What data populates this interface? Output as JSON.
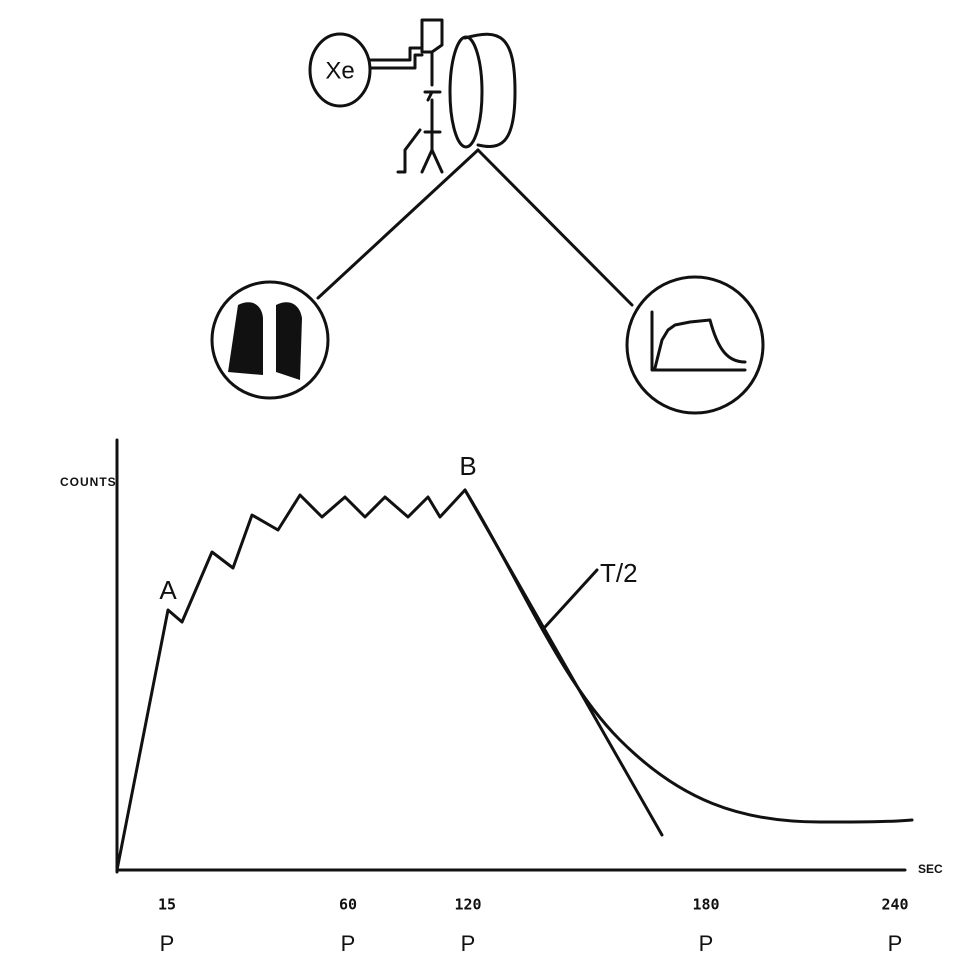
{
  "diagram": {
    "reservoir_label": "Xe",
    "y_axis_label": "COUNTS",
    "x_axis_label": "SEC",
    "points": [
      "A",
      "B"
    ],
    "half_time_label": "T/2",
    "x_ticks": [
      "15",
      "60",
      "120",
      "180",
      "240"
    ],
    "phase_labels": [
      "P",
      "P",
      "P",
      "P",
      "P"
    ]
  }
}
